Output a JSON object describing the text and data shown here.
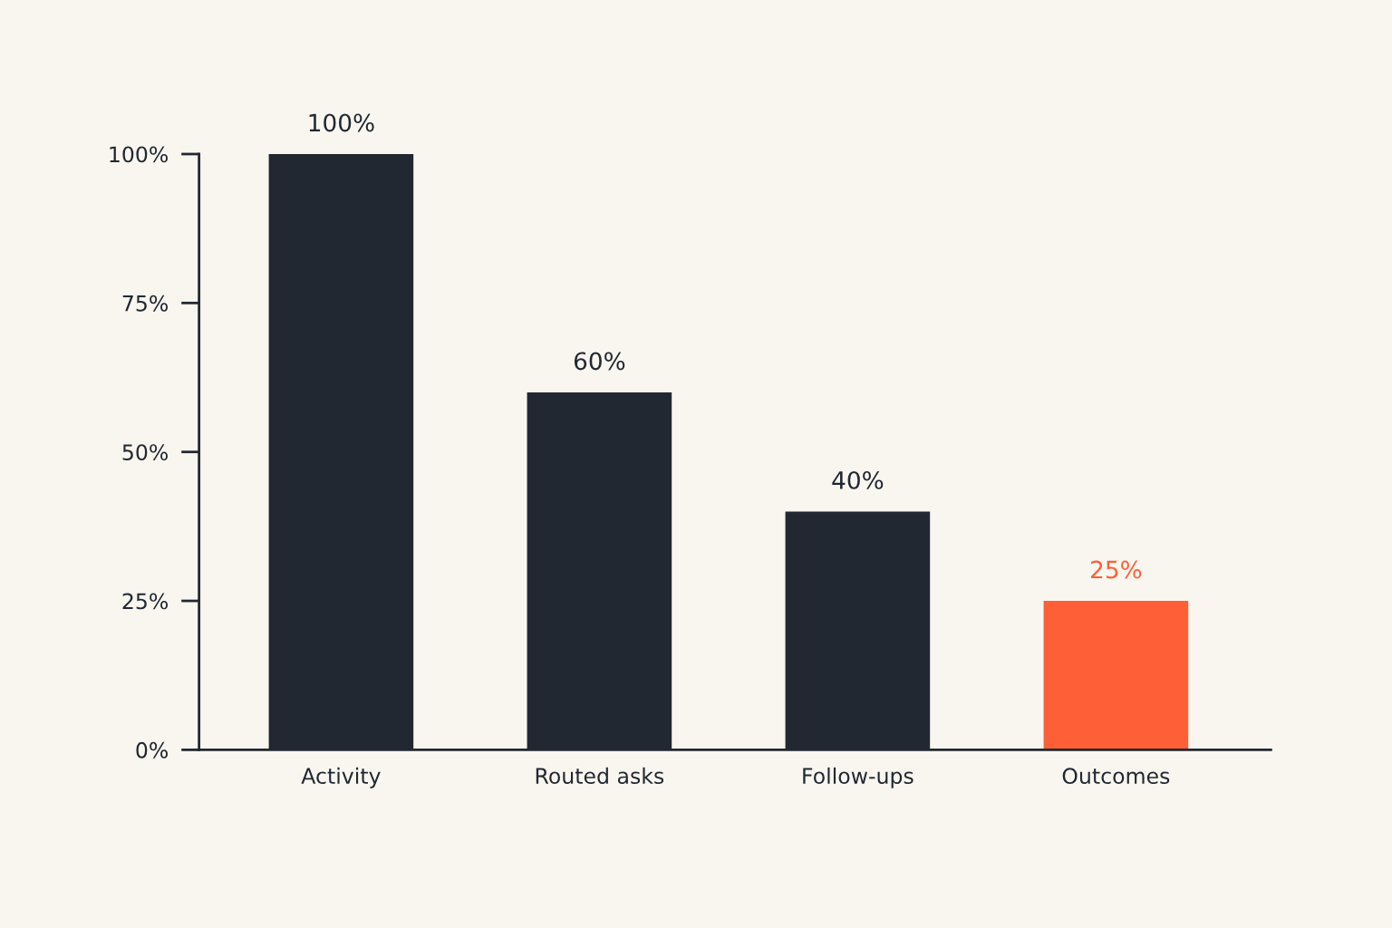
{
  "chart_data": {
    "type": "bar",
    "categories": [
      "Activity",
      "Routed asks",
      "Follow-ups",
      "Outcomes"
    ],
    "values": [
      100,
      60,
      40,
      25
    ],
    "colors": [
      "#212831",
      "#212831",
      "#212831",
      "#ff5f36"
    ],
    "ylim": [
      0,
      100
    ],
    "yticks": [
      {
        "value": 0,
        "label": "0%"
      },
      {
        "value": 25,
        "label": "25%"
      },
      {
        "value": 50,
        "label": "50%"
      },
      {
        "value": 75,
        "label": "75%"
      },
      {
        "value": 100,
        "label": "100%"
      }
    ],
    "value_labels": [
      "100%",
      "60%",
      "40%",
      "25%"
    ],
    "grid": false
  }
}
